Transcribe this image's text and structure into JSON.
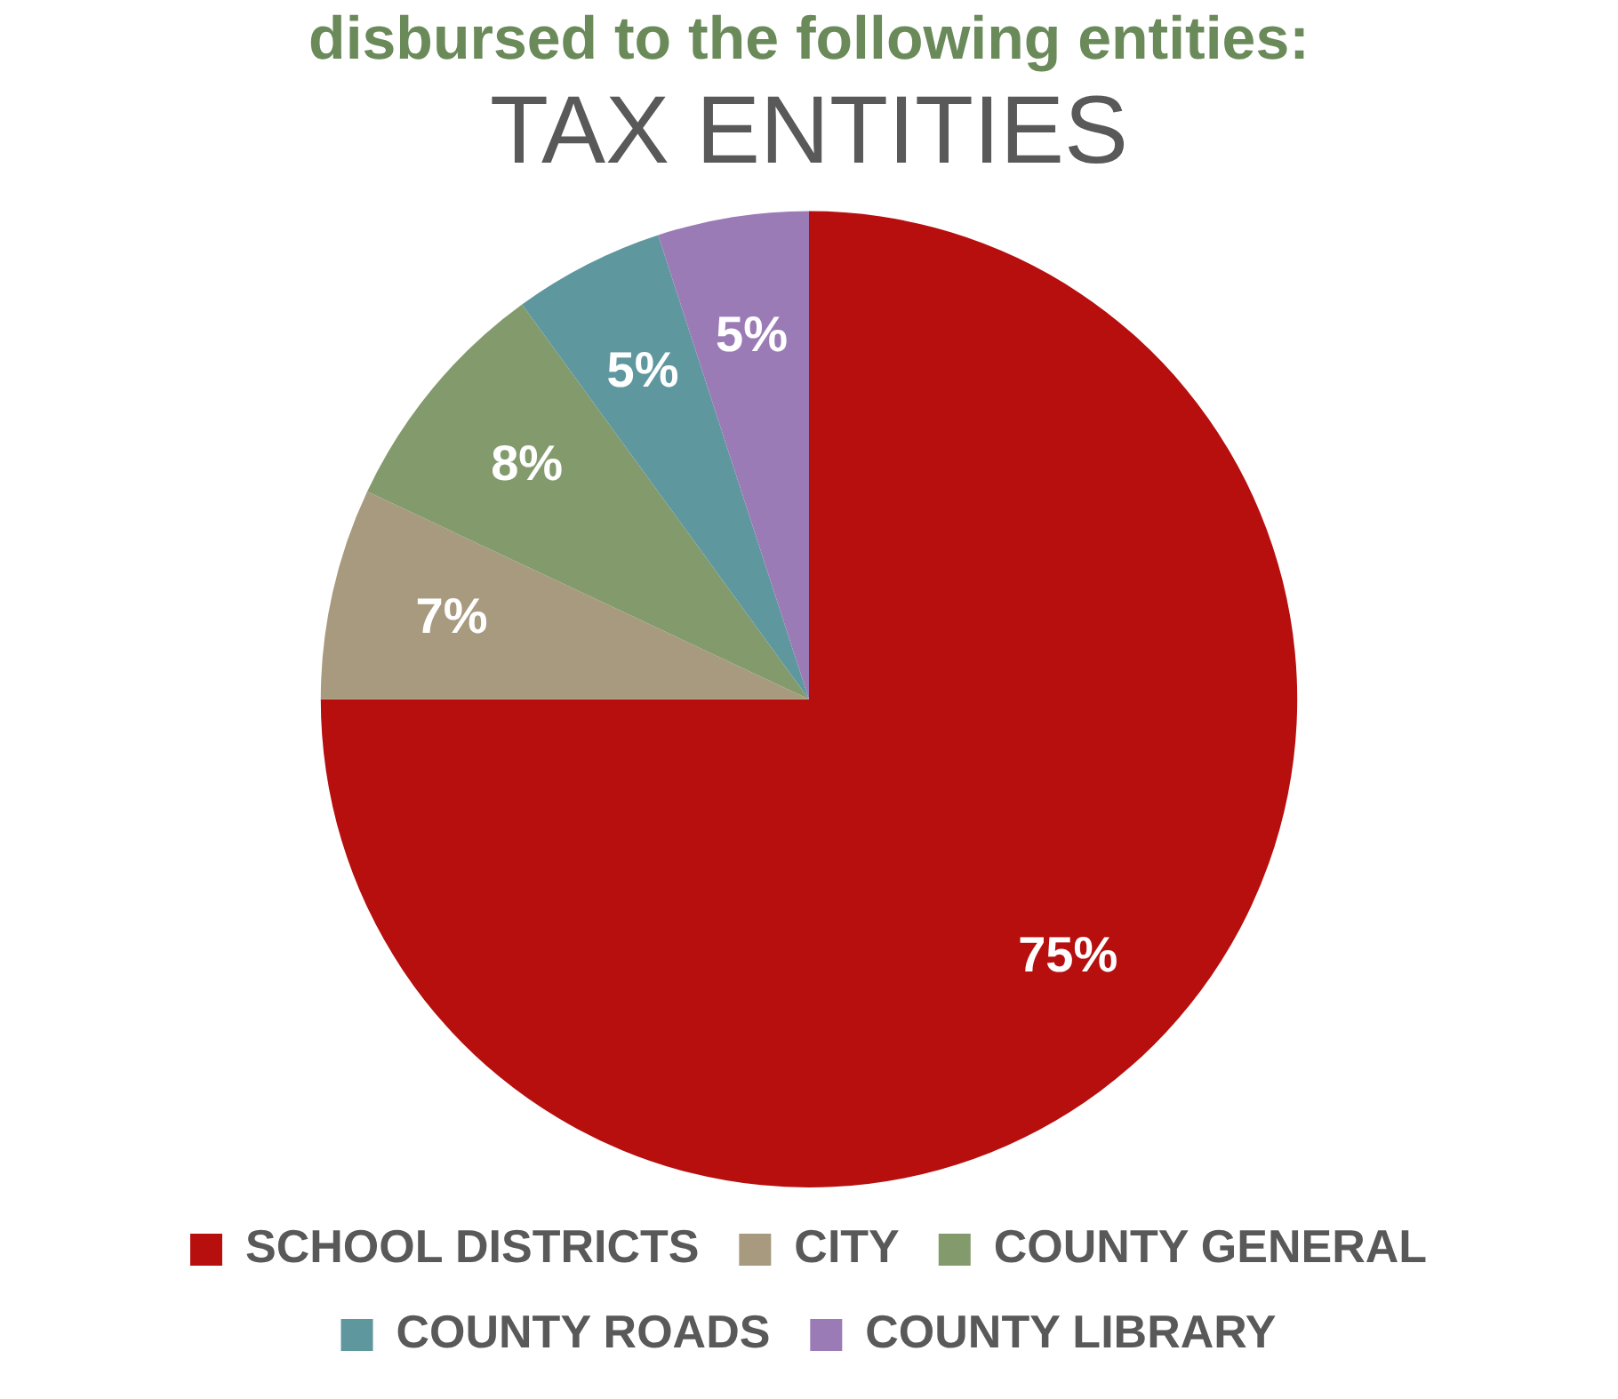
{
  "chart_data": {
    "type": "pie",
    "title": "TAX ENTITIES",
    "annotations": [
      "disbursed to the following entities:"
    ],
    "categories": [
      "SCHOOL DISTRICTS",
      "CITY",
      "COUNTY GENERAL",
      "COUNTY ROADS",
      "COUNTY LIBRARY"
    ],
    "values": [
      75,
      7,
      8,
      5,
      5
    ],
    "colors": [
      "#b70e0e",
      "#a89a7e",
      "#839b6c",
      "#5f979f",
      "#9b7bb5"
    ],
    "value_labels": [
      "75%",
      "7%",
      "8%",
      "5%",
      "5%"
    ],
    "legend": "bottom"
  }
}
